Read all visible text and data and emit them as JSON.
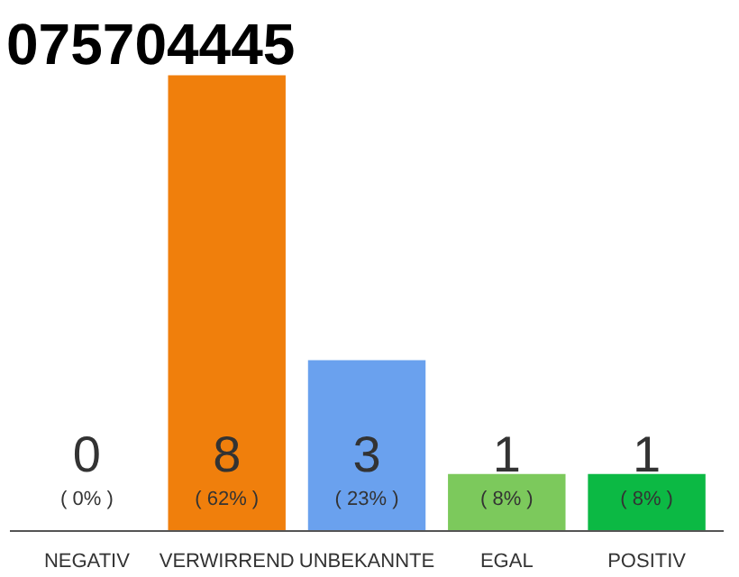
{
  "chart_data": {
    "type": "bar",
    "title": "075704445",
    "categories": [
      "NEGATIV",
      "VERWIRREND",
      "UNBEKANNTE",
      "EGAL",
      "POSITIV"
    ],
    "values": [
      0,
      8,
      3,
      1,
      1
    ],
    "colors": [
      "#f0f0f0",
      "#f07f0c",
      "#6aa1ee",
      "#7cc95c",
      "#0cb944"
    ],
    "ylim": [
      0,
      8
    ],
    "tick_labels": "x",
    "grid": false,
    "data_labels": true,
    "annotations": [
      "( 0% )",
      "( 62% )",
      "( 23% )",
      "( 8% )",
      "( 8% )"
    ]
  }
}
